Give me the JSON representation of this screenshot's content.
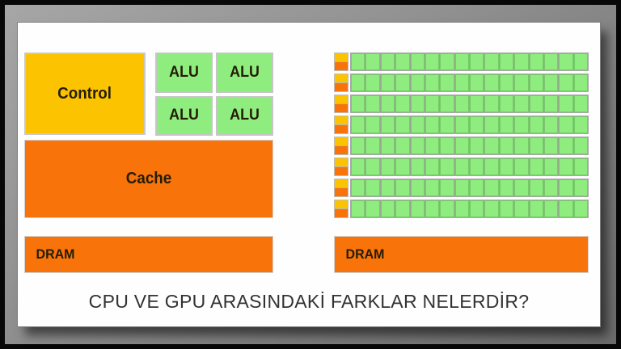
{
  "title": "CPU VE GPU ARASINDAKİ FARKLAR NELERDİR?",
  "cpu": {
    "control_label": "Control",
    "alu_labels": [
      "ALU",
      "ALU",
      "ALU",
      "ALU"
    ],
    "cache_label": "Cache",
    "dram_label": "DRAM"
  },
  "gpu": {
    "rows": 8,
    "cells_per_row": 16,
    "dram_label": "DRAM"
  },
  "colors": {
    "yellow": "#FCC400",
    "orange": "#F8730A",
    "green": "#8FED7F",
    "frame_gray": "#8E8E8E",
    "border_black": "#080808",
    "label_text": "#241D04",
    "title_text": "#323232"
  }
}
